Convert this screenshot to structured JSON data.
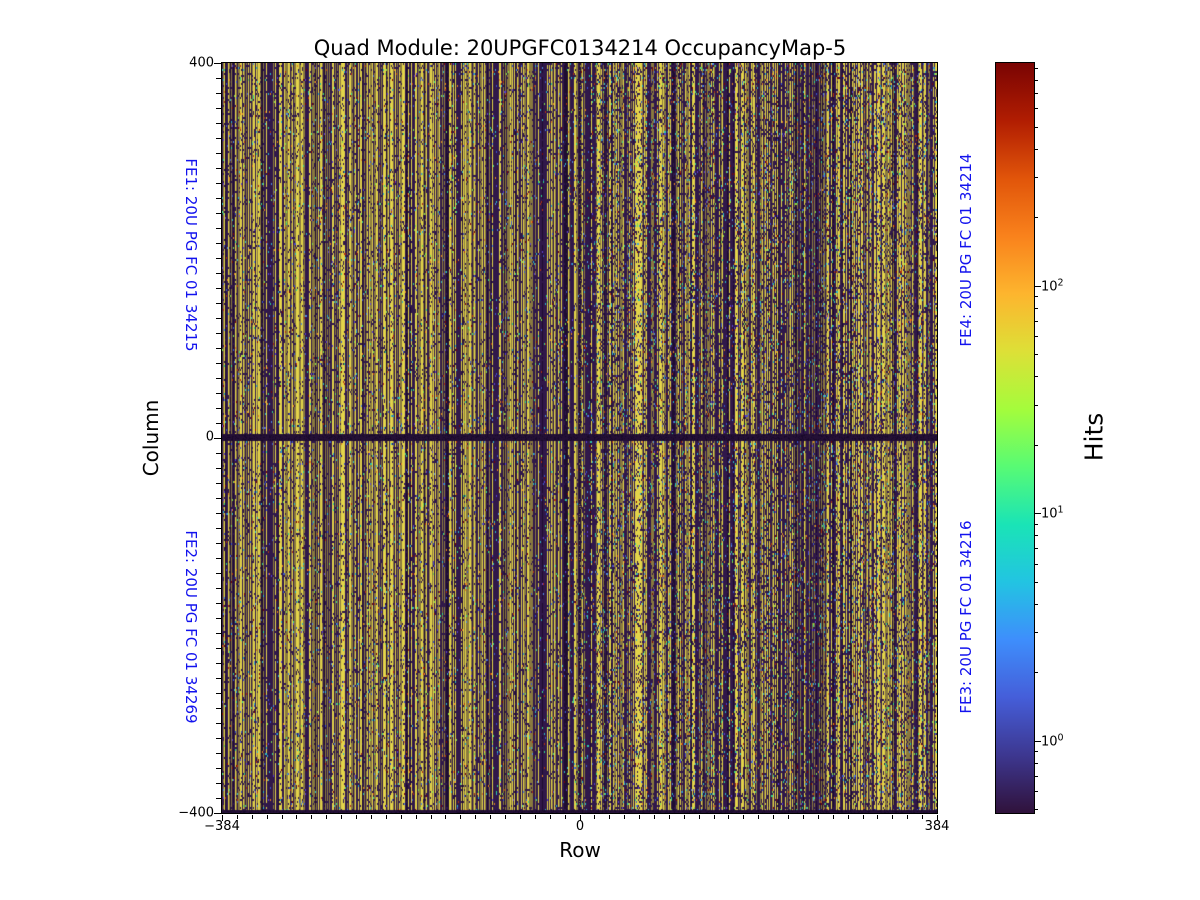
{
  "chart_data": {
    "type": "heatmap",
    "title": "Quad Module: 20UPGFC0134214 OccupancyMap-5",
    "xlabel": "Row",
    "ylabel": "Column",
    "x_range": [
      -384,
      384
    ],
    "y_range": [
      -400,
      400
    ],
    "x_major_ticks": [
      -384,
      0,
      384
    ],
    "y_major_ticks": [
      400,
      0,
      -400
    ],
    "x_tick_labels": [
      "−384",
      "0",
      "384"
    ],
    "y_tick_labels": [
      "400",
      "0",
      "−400"
    ],
    "minor_tick_step": 16,
    "grid": false,
    "colormap": "turbo",
    "description": "Pixel-detector occupancy map of a quad module: dense vertical striping of high-occupancy (yellow/olive) and low-occupancy (dark purple) pixel columns with scattered blue/cyan/green/red noise pixels; dark low-occupancy band along Column=0 and at Row=0 boundary between front-ends.",
    "colorbar": {
      "label": "Hits",
      "scale": "log",
      "log_range": [
        -0.317,
        2.978
      ],
      "major_tick_exponents": [
        2,
        1,
        0
      ],
      "tick_labels": [
        {
          "base": "10",
          "exp": "2"
        },
        {
          "base": "10",
          "exp": "1"
        },
        {
          "base": "10",
          "exp": "0"
        }
      ],
      "gradient_stops": [
        "#30123b",
        "#3d3790",
        "#455ed9",
        "#3e8efc",
        "#22c4e2",
        "#1ae4b6",
        "#58fb74",
        "#a4fc3c",
        "#dde037",
        "#fdb52e",
        "#f9821c",
        "#e1550a",
        "#b11d02",
        "#7a0403"
      ]
    },
    "annotations": [
      {
        "id": "fe1",
        "text": "FE1: 20U PG FC 01 34215",
        "side": "left",
        "quadrant": "top",
        "color": "#1212ee"
      },
      {
        "id": "fe2",
        "text": "FE2: 20U PG FC 01 34269",
        "side": "left",
        "quadrant": "bottom",
        "color": "#1212ee"
      },
      {
        "id": "fe4",
        "text": "FE4: 20U PG FC 01 34214",
        "side": "right",
        "quadrant": "top",
        "color": "#1212ee"
      },
      {
        "id": "fe3",
        "text": "FE3: 20U PG FC 01 34216",
        "side": "right",
        "quadrant": "bottom",
        "color": "#1212ee"
      }
    ],
    "texture": {
      "seed": 1234567,
      "stripe_colors": [
        "#e3d44a",
        "#8a7a3e",
        "#30184a",
        "#1e0d30"
      ],
      "stripe_cum_weights": [
        0.3,
        0.55,
        0.93,
        1.0
      ],
      "dot_colors": [
        "#3a57c9",
        "#3a57c9",
        "#4f8de0",
        "#2ab8c8",
        "#2ab8c8",
        "#2fd98c",
        "#7ce04a",
        "#b03010",
        "#7a0403",
        "#e8861e",
        "#5a3fd0"
      ],
      "dark_patch_prob": [
        0.11,
        0.2
      ],
      "dot_prob": [
        0.035,
        0.06
      ],
      "center_band": {
        "rows": [
          371,
          377
        ],
        "colors": [
          "#241036",
          "#18092a"
        ]
      },
      "bottom_band": {
        "rows": [
          747,
          749
        ],
        "colors": [
          "#241036",
          "#18092a"
        ]
      },
      "center_line": {
        "cols": [
          357,
          358
        ],
        "color": "#241036"
      }
    }
  }
}
